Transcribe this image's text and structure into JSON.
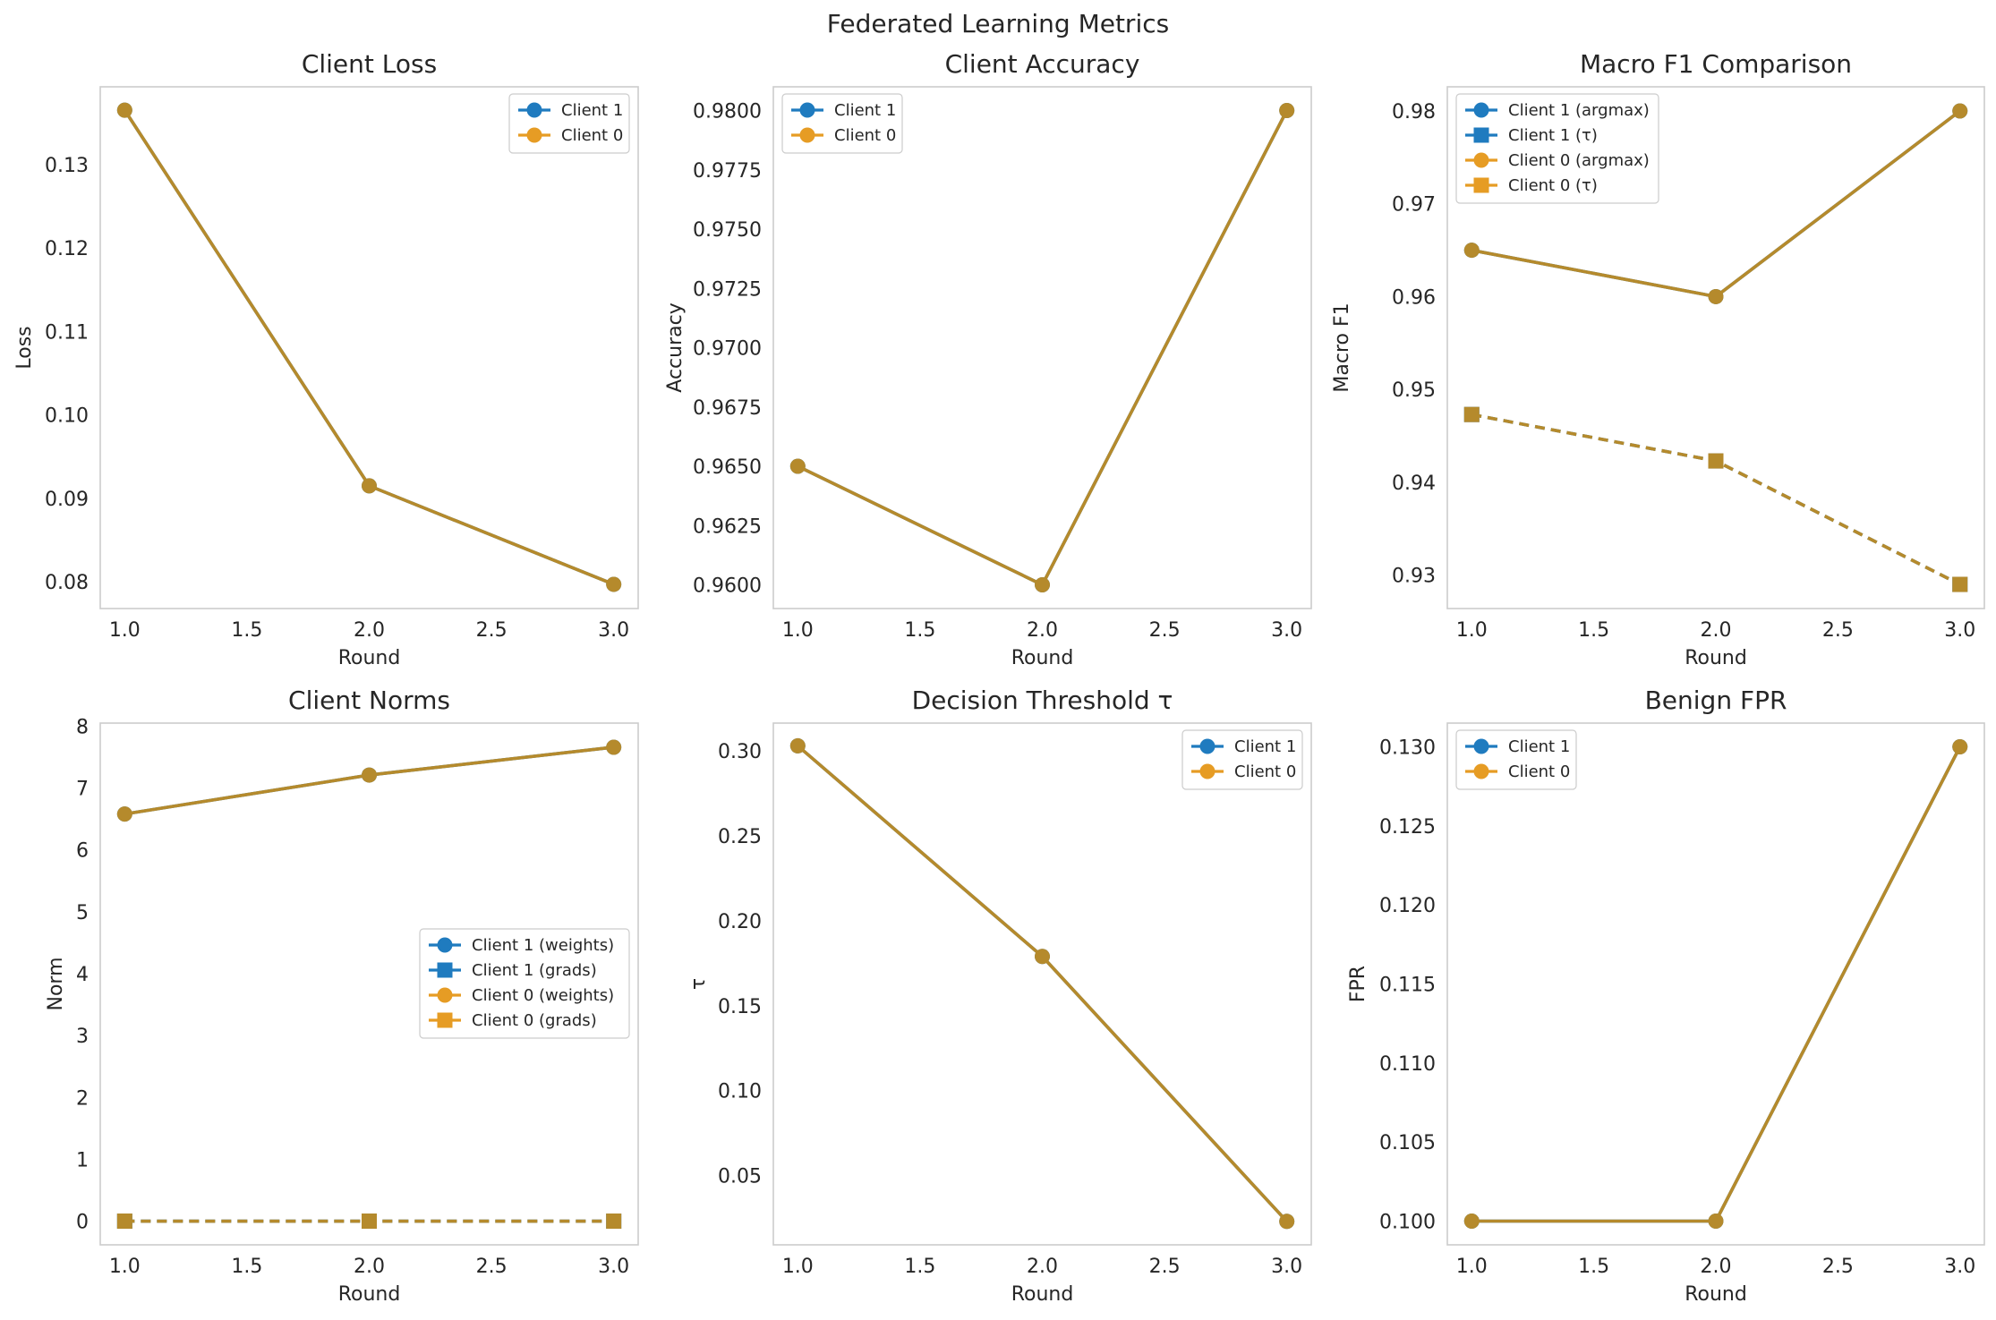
{
  "figure": {
    "title": "Federated Learning Metrics"
  },
  "colors": {
    "client1": "#1f7bbf",
    "client0": "#e69c24",
    "overlap": "#b58a2c"
  },
  "chart_data": [
    {
      "type": "line",
      "title": "Client Loss",
      "xlabel": "Round",
      "ylabel": "Loss",
      "x": [
        1.0,
        2.0,
        3.0
      ],
      "xlim": [
        0.9,
        3.1
      ],
      "ylim": [
        0.0768,
        0.1393
      ],
      "xticks": [
        "1.0",
        "1.5",
        "2.0",
        "2.5",
        "3.0"
      ],
      "yticks": [
        "0.08",
        "0.09",
        "0.10",
        "0.11",
        "0.12",
        "0.13"
      ],
      "grid": true,
      "legend": "top-right",
      "series": [
        {
          "name": "Client 1",
          "values": [
            0.1365,
            0.0915,
            0.0797
          ]
        },
        {
          "name": "Client 0",
          "values": [
            0.1365,
            0.0915,
            0.0797
          ]
        }
      ]
    },
    {
      "type": "line",
      "title": "Client Accuracy",
      "xlabel": "Round",
      "ylabel": "Accuracy",
      "x": [
        1.0,
        2.0,
        3.0
      ],
      "xlim": [
        0.9,
        3.1
      ],
      "ylim": [
        0.959,
        0.981
      ],
      "xticks": [
        "1.0",
        "1.5",
        "2.0",
        "2.5",
        "3.0"
      ],
      "yticks": [
        "0.9600",
        "0.9625",
        "0.9650",
        "0.9675",
        "0.9700",
        "0.9725",
        "0.9750",
        "0.9775",
        "0.9800"
      ],
      "grid": true,
      "legend": "top-left",
      "series": [
        {
          "name": "Client 1",
          "values": [
            0.965,
            0.96,
            0.98
          ]
        },
        {
          "name": "Client 0",
          "values": [
            0.965,
            0.96,
            0.98
          ]
        }
      ]
    },
    {
      "type": "line",
      "title": "Macro F1 Comparison",
      "xlabel": "Round",
      "ylabel": "Macro F1",
      "x": [
        1.0,
        2.0,
        3.0
      ],
      "xlim": [
        0.9,
        3.1
      ],
      "ylim": [
        0.9264,
        0.9826
      ],
      "xticks": [
        "1.0",
        "1.5",
        "2.0",
        "2.5",
        "3.0"
      ],
      "yticks": [
        "0.93",
        "0.94",
        "0.95",
        "0.96",
        "0.97",
        "0.98"
      ],
      "grid": true,
      "legend": "top-left",
      "series": [
        {
          "name": "Client 1 (argmax)",
          "values": [
            0.965,
            0.96,
            0.98
          ]
        },
        {
          "name": "Client 1 (τ)",
          "values": [
            0.9473,
            0.9423,
            0.929
          ]
        },
        {
          "name": "Client 0 (argmax)",
          "values": [
            0.965,
            0.96,
            0.98
          ]
        },
        {
          "name": "Client 0 (τ)",
          "values": [
            0.9473,
            0.9423,
            0.929
          ]
        }
      ]
    },
    {
      "type": "line",
      "title": "Client Norms",
      "xlabel": "Round",
      "ylabel": "Norm",
      "x": [
        1.0,
        2.0,
        3.0
      ],
      "xlim": [
        0.9,
        3.1
      ],
      "ylim": [
        -0.383,
        8.05
      ],
      "xticks": [
        "1.0",
        "1.5",
        "2.0",
        "2.5",
        "3.0"
      ],
      "yticks": [
        "0",
        "1",
        "2",
        "3",
        "4",
        "5",
        "6",
        "7",
        "8"
      ],
      "grid": true,
      "legend": "center-right",
      "series": [
        {
          "name": "Client 1 (weights)",
          "values": [
            6.58,
            7.21,
            7.66
          ]
        },
        {
          "name": "Client 1 (grads)",
          "values": [
            0.0,
            0.0,
            0.0
          ]
        },
        {
          "name": "Client 0 (weights)",
          "values": [
            6.58,
            7.21,
            7.66
          ]
        },
        {
          "name": "Client 0 (grads)",
          "values": [
            0.0,
            0.0,
            0.0
          ]
        }
      ]
    },
    {
      "type": "line",
      "title": "Decision Threshold τ",
      "xlabel": "Round",
      "ylabel": "τ",
      "x": [
        1.0,
        2.0,
        3.0
      ],
      "xlim": [
        0.9,
        3.1
      ],
      "ylim": [
        0.0092,
        0.3164
      ],
      "xticks": [
        "1.0",
        "1.5",
        "2.0",
        "2.5",
        "3.0"
      ],
      "yticks": [
        "0.05",
        "0.10",
        "0.15",
        "0.20",
        "0.25",
        "0.30"
      ],
      "grid": true,
      "legend": "top-right",
      "series": [
        {
          "name": "Client 1",
          "values": [
            0.303,
            0.179,
            0.023
          ]
        },
        {
          "name": "Client 0",
          "values": [
            0.303,
            0.179,
            0.023
          ]
        }
      ]
    },
    {
      "type": "line",
      "title": "Benign FPR",
      "xlabel": "Round",
      "ylabel": "FPR",
      "x": [
        1.0,
        2.0,
        3.0
      ],
      "xlim": [
        0.9,
        3.1
      ],
      "ylim": [
        0.0985,
        0.1315
      ],
      "xticks": [
        "1.0",
        "1.5",
        "2.0",
        "2.5",
        "3.0"
      ],
      "yticks": [
        "0.100",
        "0.105",
        "0.110",
        "0.115",
        "0.120",
        "0.125",
        "0.130"
      ],
      "grid": true,
      "legend": "top-left",
      "series": [
        {
          "name": "Client 1",
          "values": [
            0.1,
            0.1,
            0.13
          ]
        },
        {
          "name": "Client 0",
          "values": [
            0.1,
            0.1,
            0.13
          ]
        }
      ]
    }
  ]
}
